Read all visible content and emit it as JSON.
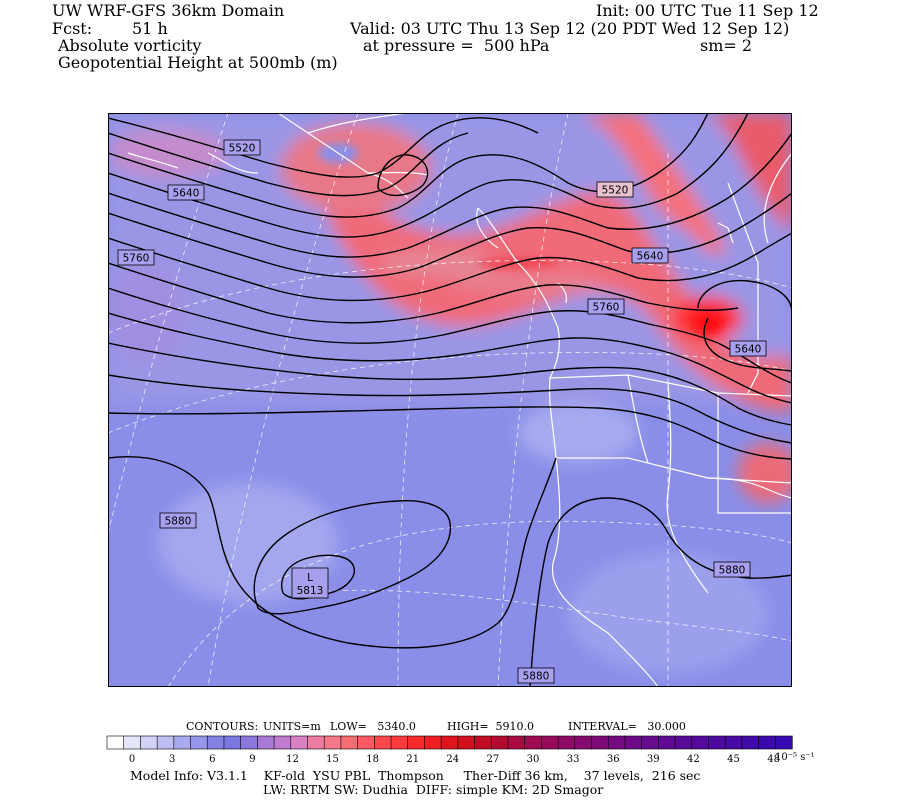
{
  "header": {
    "title": "UW WRF-GFS 36km Domain",
    "init": "Init: 00 UTC Tue 11 Sep 12",
    "fcst_label": "Fcst:",
    "fcst_value": "51 h",
    "valid": "Valid: 03 UTC Thu 13 Sep 12 (20 PDT Wed 12 Sep 12)",
    "field1": "Absolute vorticity",
    "pressure": "at pressure =  500 hPa",
    "smooth": "sm= 2",
    "field2": "Geopotential Height at 500mb (m)"
  },
  "map": {
    "contour_labels": [
      "5520",
      "5640",
      "5760",
      "5520",
      "5640",
      "5760",
      "5640",
      "5880",
      "5880",
      "5880"
    ],
    "low_marker": "L",
    "low_value": "5813"
  },
  "contour_info": {
    "contours": "CONTOURS:",
    "units": "UNITS=m",
    "low": "LOW=   5340.0",
    "high": "HIGH=  5910.0",
    "interval": "INTERVAL=   30.000"
  },
  "colorbar": {
    "ticks": [
      "0",
      "3",
      "6",
      "9",
      "12",
      "15",
      "18",
      "21",
      "24",
      "27",
      "30",
      "33",
      "36",
      "39",
      "42",
      "45",
      "48"
    ],
    "unit_label": "10⁻⁵ s⁻¹",
    "colors": [
      "#ffffff",
      "#e6e6fa",
      "#d2d2f6",
      "#bebef2",
      "#aaaaee",
      "#9696ea",
      "#8282e6",
      "#7878e0",
      "#8c78dc",
      "#a87ad6",
      "#c07cd0",
      "#d880c4",
      "#ec7ca0",
      "#f47888",
      "#f86c74",
      "#fa5a60",
      "#fc484c",
      "#fe3a3c",
      "#f82a2c",
      "#ee1e22",
      "#e0141c",
      "#d0101c",
      "#c00c24",
      "#b40a30",
      "#aa0a40",
      "#a00a50",
      "#980a5c",
      "#8e0a66",
      "#860a70",
      "#7e0a78",
      "#760a80",
      "#6e0a88",
      "#660a8e",
      "#600a94",
      "#5a0a98",
      "#540a9c",
      "#4e0aa0",
      "#480aa4",
      "#420aa8",
      "#3c0aac",
      "#360ab0"
    ]
  },
  "footer": {
    "line1": "Model Info: V3.1.1    KF-old  YSU PBL  Thompson     Ther-Diff 36 km,    37 levels,  216 sec",
    "line2": "LW: RRTM SW: Dudhia  DIFF: simple KM: 2D Smagor"
  }
}
